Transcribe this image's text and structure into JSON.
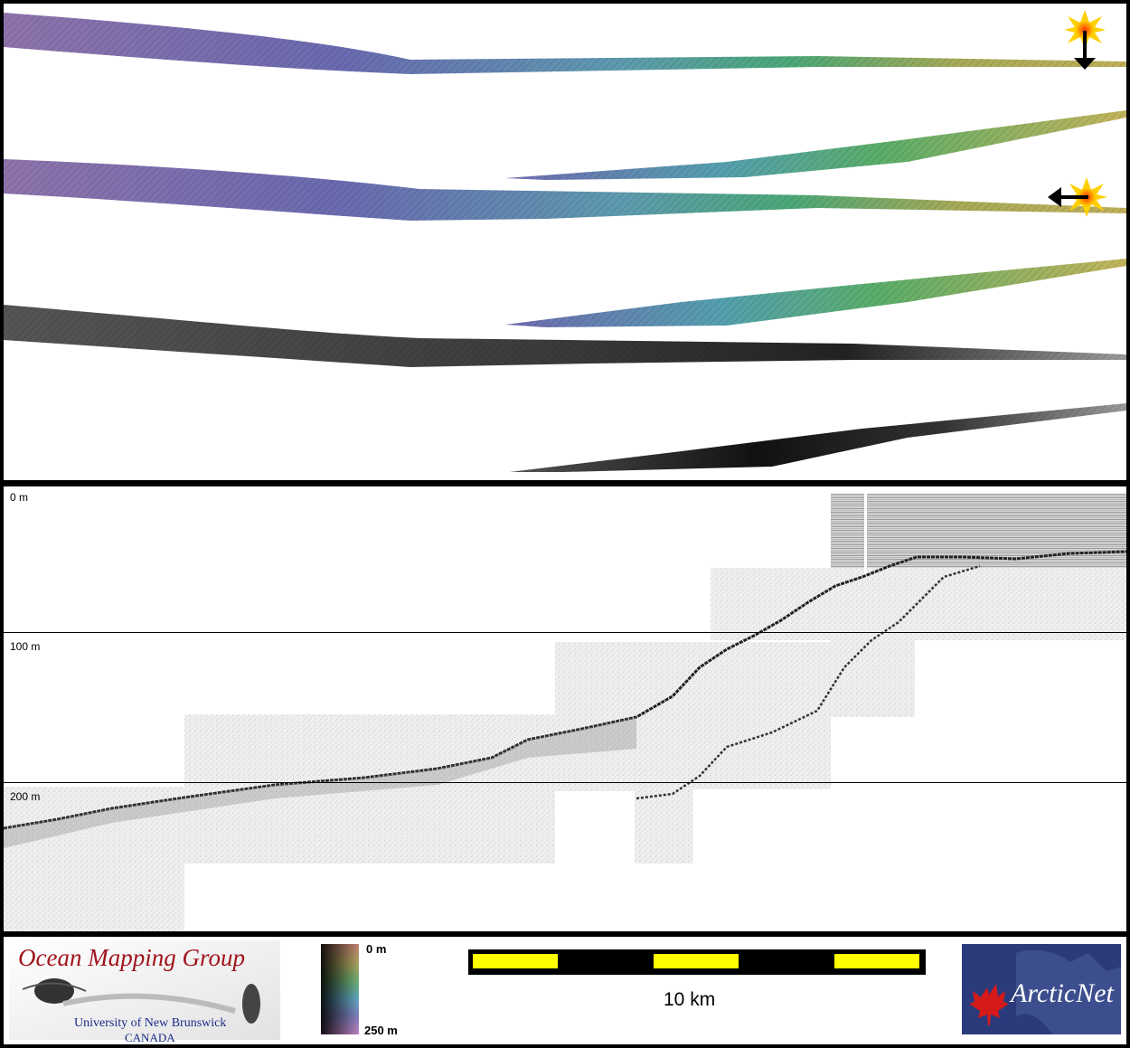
{
  "profile": {
    "depth_labels": [
      "0 m",
      "100 m",
      "200 m"
    ]
  },
  "footer": {
    "omg_title": "Ocean Mapping Group",
    "omg_university": "University of New Brunswick",
    "omg_country": "CANADA",
    "colorbar_top_label": "0 m",
    "colorbar_bottom_label": "250 m",
    "scale_bar_label": "10 km",
    "arcticnet_logo_text": "ArcticNet"
  },
  "colors": {
    "omg_title": "#a0141c",
    "omg_subtitle": "#1a2a8a",
    "scale_yellow": "#ffff00",
    "arcticnet_blue": "#2a3a7a",
    "maple_red": "#d41a1a"
  }
}
